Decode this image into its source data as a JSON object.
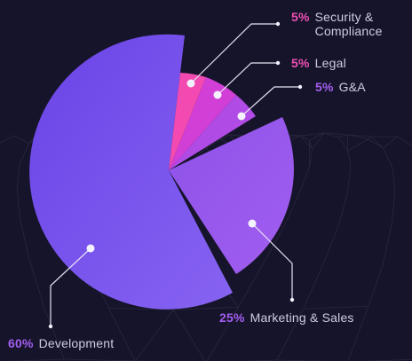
{
  "chart_data": {
    "type": "pie",
    "series": [
      {
        "label": "Development",
        "value": 60,
        "value_label": "60%",
        "color": "#7b54ee"
      },
      {
        "label": "Security & Compliance",
        "value": 5,
        "value_label": "5%",
        "color": "#f24ab0"
      },
      {
        "label": "Legal",
        "value": 5,
        "value_label": "5%",
        "color": "#d23fd6"
      },
      {
        "label": "G&A",
        "value": 5,
        "value_label": "5%",
        "color": "#b04be6"
      },
      {
        "label": "Marketing & Sales",
        "value": 25,
        "value_label": "25%",
        "color": "#9557ea"
      }
    ],
    "colors": {
      "label_text": "#cfcbe6",
      "percent_pink": "#ee4fb4",
      "percent_purple": "#a35ef0",
      "leader_line": "#e6e3f5",
      "background": "#16142a"
    }
  }
}
